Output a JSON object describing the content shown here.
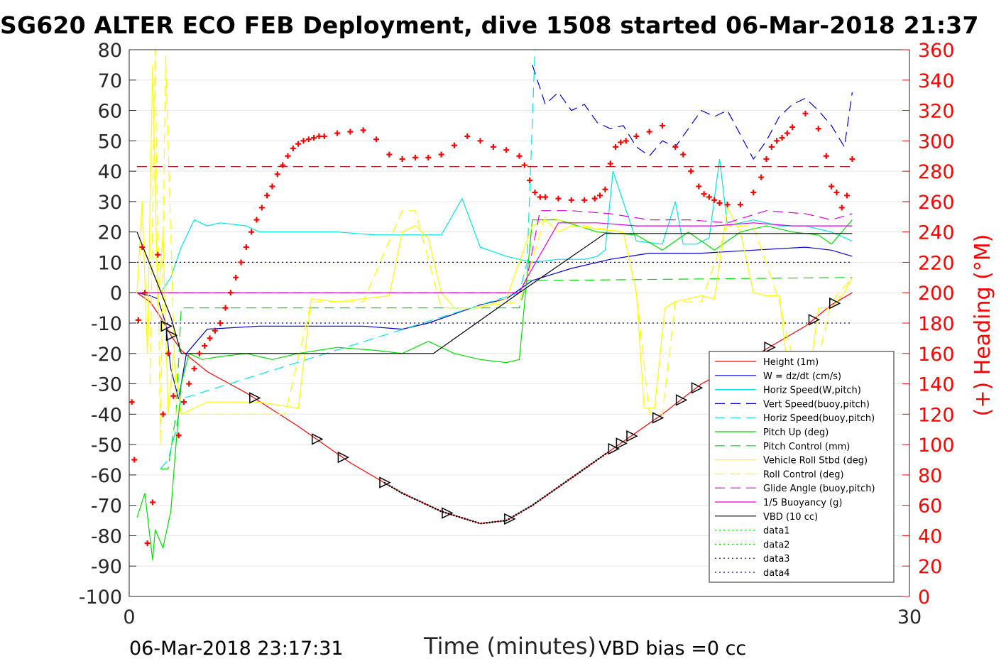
{
  "chart_data": {
    "type": "line",
    "title": "SG620 ALTER ECO FEB Deployment, dive 1508 started 06-Mar-2018 21:37",
    "xlabel": "Time (minutes)",
    "ylabel_left": "",
    "ylabel_right": "(+) Heading (°M)",
    "xlim": [
      0,
      30
    ],
    "ylim_left": [
      -100,
      80
    ],
    "ylim_right": [
      0,
      360
    ],
    "x_ticks": [
      "0",
      "30"
    ],
    "y_ticks_left": [
      "80",
      "70",
      "60",
      "50",
      "40",
      "30",
      "20",
      "10",
      "0",
      "-10",
      "-20",
      "-30",
      "-40",
      "-50",
      "-60",
      "-70",
      "-80",
      "-90",
      "-100"
    ],
    "y_ticks_right": [
      "360",
      "340",
      "320",
      "300",
      "280",
      "260",
      "240",
      "220",
      "200",
      "180",
      "160",
      "140",
      "120",
      "100",
      "80",
      "60",
      "40",
      "20",
      "0"
    ],
    "grid": true,
    "legend_position": "bottom-right",
    "footer_date": "06-Mar-2018 23:17:31",
    "footer_vbd": "VBD bias =0 cc",
    "series": [
      {
        "name": "Height (1m)",
        "color": "#ff0000",
        "style": "solid",
        "x": [
          0.3,
          0.8,
          1.2,
          1.6,
          2.0,
          3.0,
          4.5,
          6.5,
          8.5,
          10.5,
          12.0,
          13.5,
          14.5,
          15.5,
          16.5,
          17.5,
          19.0,
          20.5,
          22.0,
          24.0,
          26.0,
          27.0,
          27.8
        ],
        "y": [
          0,
          -3,
          -8,
          -14,
          -19,
          -26,
          -33,
          -44,
          -56,
          -66,
          -72,
          -76,
          -75,
          -70,
          -64,
          -58,
          -49,
          -40,
          -30,
          -21,
          -11,
          -4,
          0
        ]
      },
      {
        "name": "W = dz/dt (cm/s)",
        "color": "#0000cd",
        "style": "solid",
        "x": [
          0.3,
          0.8,
          1.1,
          1.4,
          1.6,
          1.9,
          2.2,
          3.0,
          5.0,
          7.0,
          9.0,
          10.5,
          11.5,
          12.5,
          13.5,
          14.5,
          15.5,
          17.0,
          18.5,
          20.0,
          22.0,
          24.0,
          26.0,
          27.0,
          27.8
        ],
        "y": [
          0,
          -1,
          -2,
          -10,
          -25,
          -35,
          -20,
          -12,
          -11,
          -11,
          -11,
          -12,
          -10,
          -7,
          -4,
          -2,
          4,
          8,
          11,
          13,
          13,
          14,
          15,
          14,
          12
        ]
      },
      {
        "name": "Horiz Speed(W,pitch)",
        "color": "#00e5e5",
        "style": "solid",
        "x": [
          0.3,
          1.2,
          1.6,
          2.0,
          2.5,
          3.0,
          3.5,
          4.5,
          5.0,
          6.5,
          8.0,
          9.5,
          10.5,
          11.5,
          12.0,
          12.8,
          13.5,
          14.5,
          15.5,
          16.5,
          17.5,
          18.0,
          18.3,
          18.6,
          19.5,
          20.5,
          21.0,
          21.3,
          21.8,
          22.3,
          22.7,
          23.0,
          24.0,
          25.0,
          26.0,
          27.0,
          27.8
        ],
        "y": [
          0,
          0,
          5,
          15,
          24,
          22,
          23,
          22,
          20,
          20,
          20,
          19,
          19,
          19,
          19,
          31,
          15,
          12,
          10,
          11,
          11,
          12,
          14,
          40,
          17,
          16,
          30,
          16,
          16,
          18,
          44,
          22,
          24,
          22,
          22,
          20,
          17
        ]
      },
      {
        "name": "Vert Speed(buoy,pitch)",
        "color": "#0000cd",
        "style": "dash",
        "x": [
          15.5,
          16.0,
          16.5,
          17.0,
          17.5,
          18.0,
          18.5,
          19.0,
          19.5,
          20.0,
          20.5,
          21.0,
          21.5,
          22.0,
          22.5,
          23.0,
          23.5,
          24.0,
          24.5,
          25.0,
          25.5,
          26.0,
          26.5,
          27.0,
          27.5,
          27.8
        ],
        "y": [
          75,
          62,
          66,
          60,
          62,
          56,
          54,
          55,
          48,
          45,
          50,
          48,
          54,
          60,
          58,
          60,
          52,
          44,
          50,
          58,
          62,
          64,
          60,
          55,
          48,
          66
        ]
      },
      {
        "name": "Horiz Speed(buoy,pitch)",
        "color": "#00e5e5",
        "style": "dash",
        "x": [
          1.2,
          1.5,
          1.8,
          2.0,
          15.0,
          15.3,
          15.6
        ],
        "y": [
          -58,
          -55,
          -45,
          -35,
          0,
          10,
          80
        ]
      },
      {
        "name": "Pitch Up (deg)",
        "color": "#00dd00",
        "style": "solid",
        "x": [
          0.3,
          0.6,
          0.9,
          1.0,
          1.3,
          1.6,
          1.8,
          2.0,
          2.3,
          2.8,
          3.5,
          4.5,
          5.5,
          6.5,
          8.0,
          9.5,
          10.5,
          11.5,
          12.5,
          13.5,
          14.5,
          15.0,
          15.5,
          16.5,
          18.0,
          19.5,
          20.5,
          21.5,
          22.5,
          23.5,
          24.5,
          25.5,
          26.5,
          27.0,
          27.8
        ],
        "y": [
          -74,
          -66,
          -88,
          -78,
          -84,
          -72,
          -50,
          -30,
          -20,
          -22,
          -21,
          -20,
          -22,
          -20,
          -18,
          -19,
          -20,
          -16,
          -20,
          -22,
          -23,
          -22,
          24,
          24,
          20,
          19,
          14,
          20,
          14,
          20,
          22,
          20,
          19,
          16,
          24
        ]
      },
      {
        "name": "Pitch Control (mm)",
        "color": "#00dd00",
        "style": "dash",
        "x": [
          1.2,
          1.5,
          1.8,
          2.0,
          15.0,
          15.3,
          15.6,
          27.8
        ],
        "y": [
          -58,
          -58,
          -40,
          -5,
          -5,
          4,
          4,
          5
        ]
      },
      {
        "name": "Vehicle Roll Stbd (deg)",
        "color": "#ffff00",
        "style": "solid",
        "x": [
          0.3,
          0.5,
          0.7,
          0.9,
          1.1,
          1.3,
          1.5,
          1.7,
          2.0,
          2.5,
          3.0,
          5.0,
          6.5,
          7.0,
          8.0,
          9.0,
          10.0,
          10.5,
          11.0,
          11.5,
          12.0,
          12.5,
          13.5,
          14.5,
          15.5,
          16.0,
          16.5,
          17.0,
          18.0,
          19.0,
          19.5,
          19.8,
          20.2,
          20.6,
          21.0,
          21.5,
          22.0,
          22.5,
          23.0,
          23.5,
          24.0,
          24.5,
          25.0,
          25.5,
          26.0,
          26.5,
          27.0,
          27.5,
          27.8
        ],
        "y": [
          0,
          30,
          -20,
          75,
          -5,
          20,
          -40,
          -20,
          -40,
          -38,
          -36,
          -36,
          -38,
          -2,
          -3,
          -2,
          -1,
          20,
          22,
          18,
          0,
          -5,
          -5,
          -2,
          22,
          24,
          20,
          22,
          21,
          20,
          0,
          -38,
          -38,
          -5,
          -3,
          -2,
          -1,
          -2,
          28,
          20,
          0,
          -1,
          -1,
          -40,
          -38,
          -5,
          -5,
          0,
          5
        ]
      },
      {
        "name": "Roll Control (deg)",
        "color": "#ffff00",
        "style": "dash",
        "x": [
          0.8,
          1.0,
          1.2,
          1.4,
          1.8,
          2.2,
          3.0,
          6.0,
          7.0,
          9.0,
          10.5,
          11.0,
          12.0,
          13.0,
          15.0,
          16.0,
          17.5,
          19.0,
          19.5,
          20.0,
          20.5,
          21.0,
          22.0,
          23.0,
          24.0,
          25.0,
          26.0,
          27.0,
          27.8
        ],
        "y": [
          -30,
          80,
          -50,
          78,
          -40,
          -40,
          -40,
          -40,
          -3,
          -3,
          27,
          27,
          -5,
          -5,
          -3,
          25,
          22,
          20,
          0,
          -40,
          -40,
          -3,
          -3,
          22,
          22,
          -3,
          -40,
          -3,
          5
        ]
      },
      {
        "name": "Glide Angle (buoy,pitch)",
        "color": "#dd00dd",
        "style": "dash",
        "x": [
          0.3,
          15.0,
          15.3,
          15.8,
          17.0,
          18.5,
          20.0,
          21.5,
          23.0,
          24.5,
          26.0,
          27.0,
          27.8
        ],
        "y": [
          0,
          0,
          5,
          27,
          27,
          26,
          24,
          24,
          23,
          27,
          26,
          24,
          26
        ]
      },
      {
        "name": "1/5 Buoyancy (g)",
        "color": "#dd00dd",
        "style": "solid",
        "x": [
          0.3,
          15.0,
          15.3,
          16.5,
          18.0,
          19.5,
          21.0,
          22.5,
          24.0,
          25.5,
          27.0,
          27.8
        ],
        "y": [
          0,
          0,
          5,
          23,
          23,
          22,
          22,
          22,
          23,
          22,
          22,
          22
        ]
      },
      {
        "name": "VBD (10 cc)",
        "color": "#000000",
        "style": "solid",
        "x": [
          0.3,
          1.6,
          2.0,
          11.7,
          15.0,
          18.3,
          27.8
        ],
        "y": [
          20,
          -8,
          -20,
          -20,
          0,
          19.5,
          19.5
        ]
      },
      {
        "name": "data1",
        "color": "#00dd00",
        "style": "dot",
        "x": [],
        "y": []
      },
      {
        "name": "data2",
        "color": "#00dd00",
        "style": "dot",
        "x": [],
        "y": []
      },
      {
        "name": "data3",
        "color": "#000080",
        "style": "dot",
        "x": [
          0.3,
          27.8
        ],
        "y": [
          10,
          10
        ]
      },
      {
        "name": "data4",
        "color": "#000080",
        "style": "dot",
        "x": [
          0.3,
          27.8
        ],
        "y": [
          -10,
          -10
        ]
      }
    ],
    "heading": {
      "color": "#ff0000",
      "target": 283,
      "x": [
        0.1,
        0.2,
        0.35,
        0.5,
        0.6,
        0.7,
        0.9,
        1.1,
        1.3,
        1.5,
        1.7,
        1.9,
        2.1,
        2.3,
        2.5,
        2.7,
        2.9,
        3.1,
        3.3,
        3.5,
        3.7,
        3.9,
        4.1,
        4.3,
        4.5,
        4.7,
        4.9,
        5.1,
        5.3,
        5.5,
        5.7,
        5.9,
        6.1,
        6.3,
        6.5,
        6.7,
        6.9,
        7.1,
        7.3,
        7.5,
        8.0,
        8.5,
        9.0,
        9.5,
        10.0,
        10.5,
        11.0,
        11.5,
        12.0,
        12.5,
        13.0,
        13.5,
        14.0,
        14.5,
        15.0,
        15.2,
        15.4,
        15.6,
        15.8,
        16.0,
        16.5,
        17.0,
        17.5,
        17.9,
        18.1,
        18.3,
        18.5,
        18.7,
        18.9,
        19.1,
        19.5,
        20.0,
        20.5,
        21.0,
        21.3,
        21.6,
        21.9,
        22.1,
        22.3,
        22.5,
        22.7,
        23.0,
        23.5,
        24.0,
        24.3,
        24.5,
        24.7,
        24.9,
        25.1,
        25.3,
        25.5,
        26.0,
        26.5,
        26.8,
        27.0,
        27.2,
        27.4,
        27.6,
        27.8
      ],
      "y": [
        128,
        90,
        182,
        230,
        200,
        35,
        62,
        225,
        120,
        160,
        132,
        106,
        128,
        140,
        150,
        160,
        165,
        170,
        175,
        180,
        190,
        200,
        210,
        220,
        230,
        240,
        248,
        256,
        264,
        270,
        278,
        284,
        290,
        295,
        298,
        300,
        301,
        302,
        303,
        303,
        305,
        306,
        307,
        301,
        291,
        288,
        289,
        289,
        291,
        297,
        303,
        300,
        296,
        294,
        290,
        284,
        274,
        266,
        263,
        263,
        262,
        261,
        261,
        262,
        264,
        268,
        285,
        296,
        299,
        300,
        303,
        306,
        310,
        296,
        291,
        280,
        270,
        265,
        263,
        261,
        259,
        258,
        258,
        266,
        276,
        288,
        296,
        300,
        302,
        305,
        309,
        318,
        308,
        290,
        270,
        266,
        256,
        264,
        288
      ]
    }
  }
}
